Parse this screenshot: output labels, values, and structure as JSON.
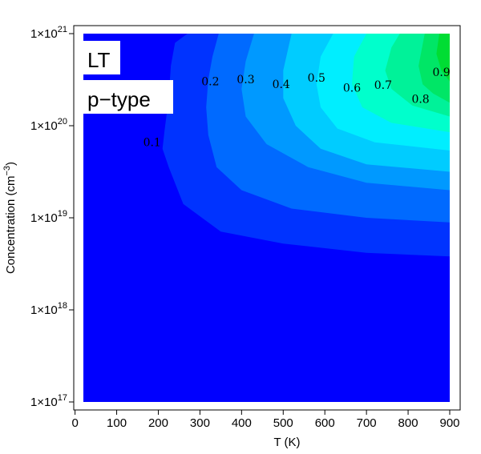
{
  "chart_data": {
    "type": "contour",
    "xlabel": "T (K)",
    "ylabel_main": "Concentration (cm",
    "ylabel_exp": "−3",
    "ylabel_close": ")",
    "xlim": [
      0,
      900
    ],
    "ylim_log10": [
      17,
      21
    ],
    "x_ticks": [
      {
        "value": 0,
        "label": "0"
      },
      {
        "value": 100,
        "label": "100"
      },
      {
        "value": 200,
        "label": "200"
      },
      {
        "value": 300,
        "label": "300"
      },
      {
        "value": 400,
        "label": "400"
      },
      {
        "value": 500,
        "label": "500"
      },
      {
        "value": 600,
        "label": "600"
      },
      {
        "value": 700,
        "label": "700"
      },
      {
        "value": 800,
        "label": "800"
      },
      {
        "value": 900,
        "label": "900"
      }
    ],
    "y_ticks": [
      {
        "log10": 17,
        "base": "1×10",
        "exp": "17"
      },
      {
        "log10": 18,
        "base": "1×10",
        "exp": "18"
      },
      {
        "log10": 19,
        "base": "1×10",
        "exp": "19"
      },
      {
        "log10": 20,
        "base": "1×10",
        "exp": "20"
      },
      {
        "log10": 21,
        "base": "1×10",
        "exp": "21"
      }
    ],
    "annotations": [
      "LT",
      "p−type"
    ],
    "contour_levels": [
      {
        "value": 0.1,
        "label": "0.1",
        "color": "#0033ff",
        "label_at": [
          185,
          19.78
        ],
        "boundary": [
          [
            900,
            18.58
          ],
          [
            700,
            18.62
          ],
          [
            500,
            18.72
          ],
          [
            350,
            18.85
          ],
          [
            260,
            19.15
          ],
          [
            225,
            19.55
          ],
          [
            210,
            19.75
          ],
          [
            215,
            19.95
          ],
          [
            225,
            20.3
          ],
          [
            230,
            20.65
          ],
          [
            240,
            20.9
          ],
          [
            270,
            21
          ]
        ]
      },
      {
        "value": 0.2,
        "label": "0.2",
        "color": "#006aff",
        "label_at": [
          325,
          20.44
        ],
        "boundary": [
          [
            900,
            18.95
          ],
          [
            700,
            19.0
          ],
          [
            520,
            19.1
          ],
          [
            400,
            19.3
          ],
          [
            340,
            19.55
          ],
          [
            320,
            19.9
          ],
          [
            315,
            20.2
          ],
          [
            320,
            20.5
          ],
          [
            330,
            20.75
          ],
          [
            345,
            21
          ]
        ]
      },
      {
        "value": 0.3,
        "label": "0.3",
        "color": "#0099ff",
        "label_at": [
          410,
          20.46
        ],
        "boundary": [
          [
            900,
            19.3
          ],
          [
            700,
            19.38
          ],
          [
            560,
            19.55
          ],
          [
            460,
            19.8
          ],
          [
            410,
            20.1
          ],
          [
            400,
            20.4
          ],
          [
            410,
            20.7
          ],
          [
            430,
            21
          ]
        ]
      },
      {
        "value": 0.4,
        "label": "0.4",
        "color": "#00ccff",
        "label_at": [
          495,
          20.41
        ],
        "boundary": [
          [
            900,
            19.5
          ],
          [
            700,
            19.58
          ],
          [
            590,
            19.75
          ],
          [
            530,
            20.0
          ],
          [
            500,
            20.3
          ],
          [
            500,
            20.6
          ],
          [
            520,
            21
          ]
        ]
      },
      {
        "value": 0.5,
        "label": "0.5",
        "color": "#00eeff",
        "label_at": [
          580,
          20.48
        ],
        "boundary": [
          [
            900,
            19.73
          ],
          [
            720,
            19.82
          ],
          [
            630,
            19.97
          ],
          [
            590,
            20.2
          ],
          [
            580,
            20.45
          ],
          [
            590,
            20.75
          ],
          [
            620,
            21
          ]
        ]
      },
      {
        "value": 0.6,
        "label": "0.6",
        "color": "#00ffcc",
        "label_at": [
          665,
          20.37
        ],
        "boundary": [
          [
            900,
            19.93
          ],
          [
            760,
            20.03
          ],
          [
            690,
            20.2
          ],
          [
            665,
            20.45
          ],
          [
            670,
            20.75
          ],
          [
            700,
            21
          ]
        ]
      },
      {
        "value": 0.7,
        "label": "0.7",
        "color": "#00f299",
        "label_at": [
          740,
          20.4
        ],
        "boundary": [
          [
            900,
            20.1
          ],
          [
            810,
            20.22
          ],
          [
            760,
            20.4
          ],
          [
            745,
            20.6
          ],
          [
            760,
            20.85
          ],
          [
            780,
            21
          ]
        ]
      },
      {
        "value": 0.8,
        "label": "0.8",
        "color": "#00e666",
        "label_at": [
          830,
          20.25
        ],
        "boundary": [
          [
            900,
            20.25
          ],
          [
            860,
            20.35
          ],
          [
            835,
            20.45
          ],
          [
            825,
            20.65
          ],
          [
            840,
            21
          ]
        ]
      },
      {
        "value": 0.9,
        "label": "0.9",
        "color": "#00dd33",
        "label_at": [
          880,
          20.54
        ],
        "boundary": [
          [
            900,
            20.48
          ],
          [
            880,
            20.6
          ],
          [
            868,
            20.78
          ],
          [
            875,
            21
          ]
        ]
      }
    ],
    "base_color": "#0000ff",
    "grid": false,
    "legend": "none"
  }
}
